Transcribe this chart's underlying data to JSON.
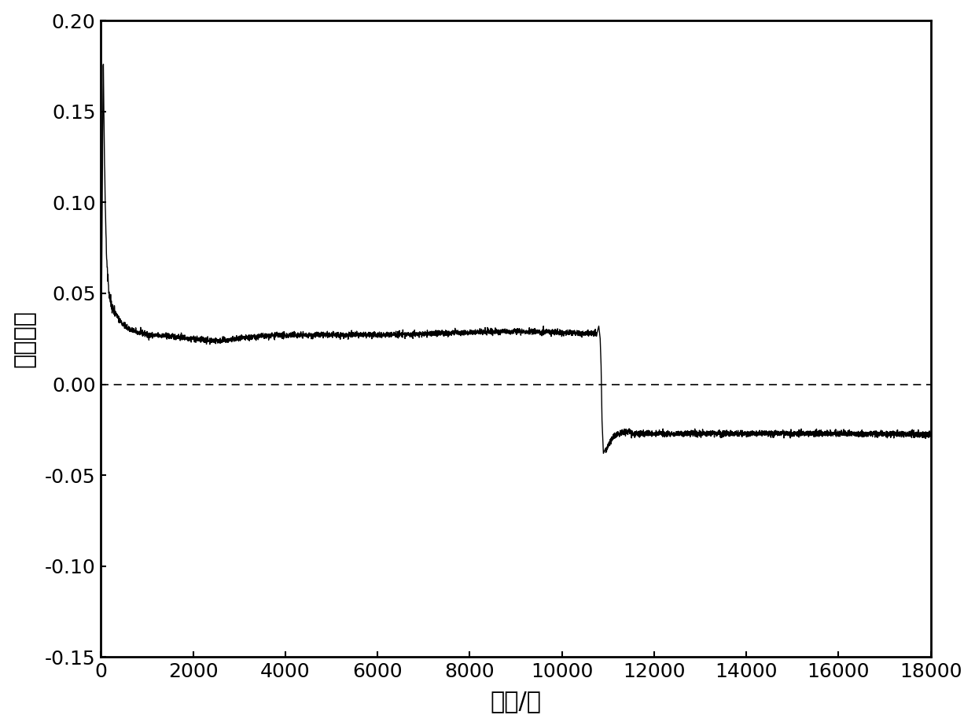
{
  "title": "",
  "xlabel": "时间/秒",
  "ylabel": "摩擦系数",
  "xlim": [
    0,
    18000
  ],
  "ylim": [
    -0.15,
    0.2
  ],
  "xticks": [
    0,
    2000,
    4000,
    6000,
    8000,
    10000,
    12000,
    14000,
    16000,
    18000
  ],
  "yticks": [
    -0.15,
    -0.1,
    -0.05,
    0.0,
    0.05,
    0.1,
    0.15,
    0.2
  ],
  "line_color": "#000000",
  "dashed_color": "#000000",
  "background_color": "#ffffff",
  "xlabel_fontsize": 22,
  "ylabel_fontsize": 22,
  "tick_fontsize": 18,
  "line_width": 1.0,
  "phase1_stable": 0.027,
  "phase2_stable": -0.028,
  "spike_max": 0.175,
  "spike_up": 0.032,
  "spike_down": -0.038
}
